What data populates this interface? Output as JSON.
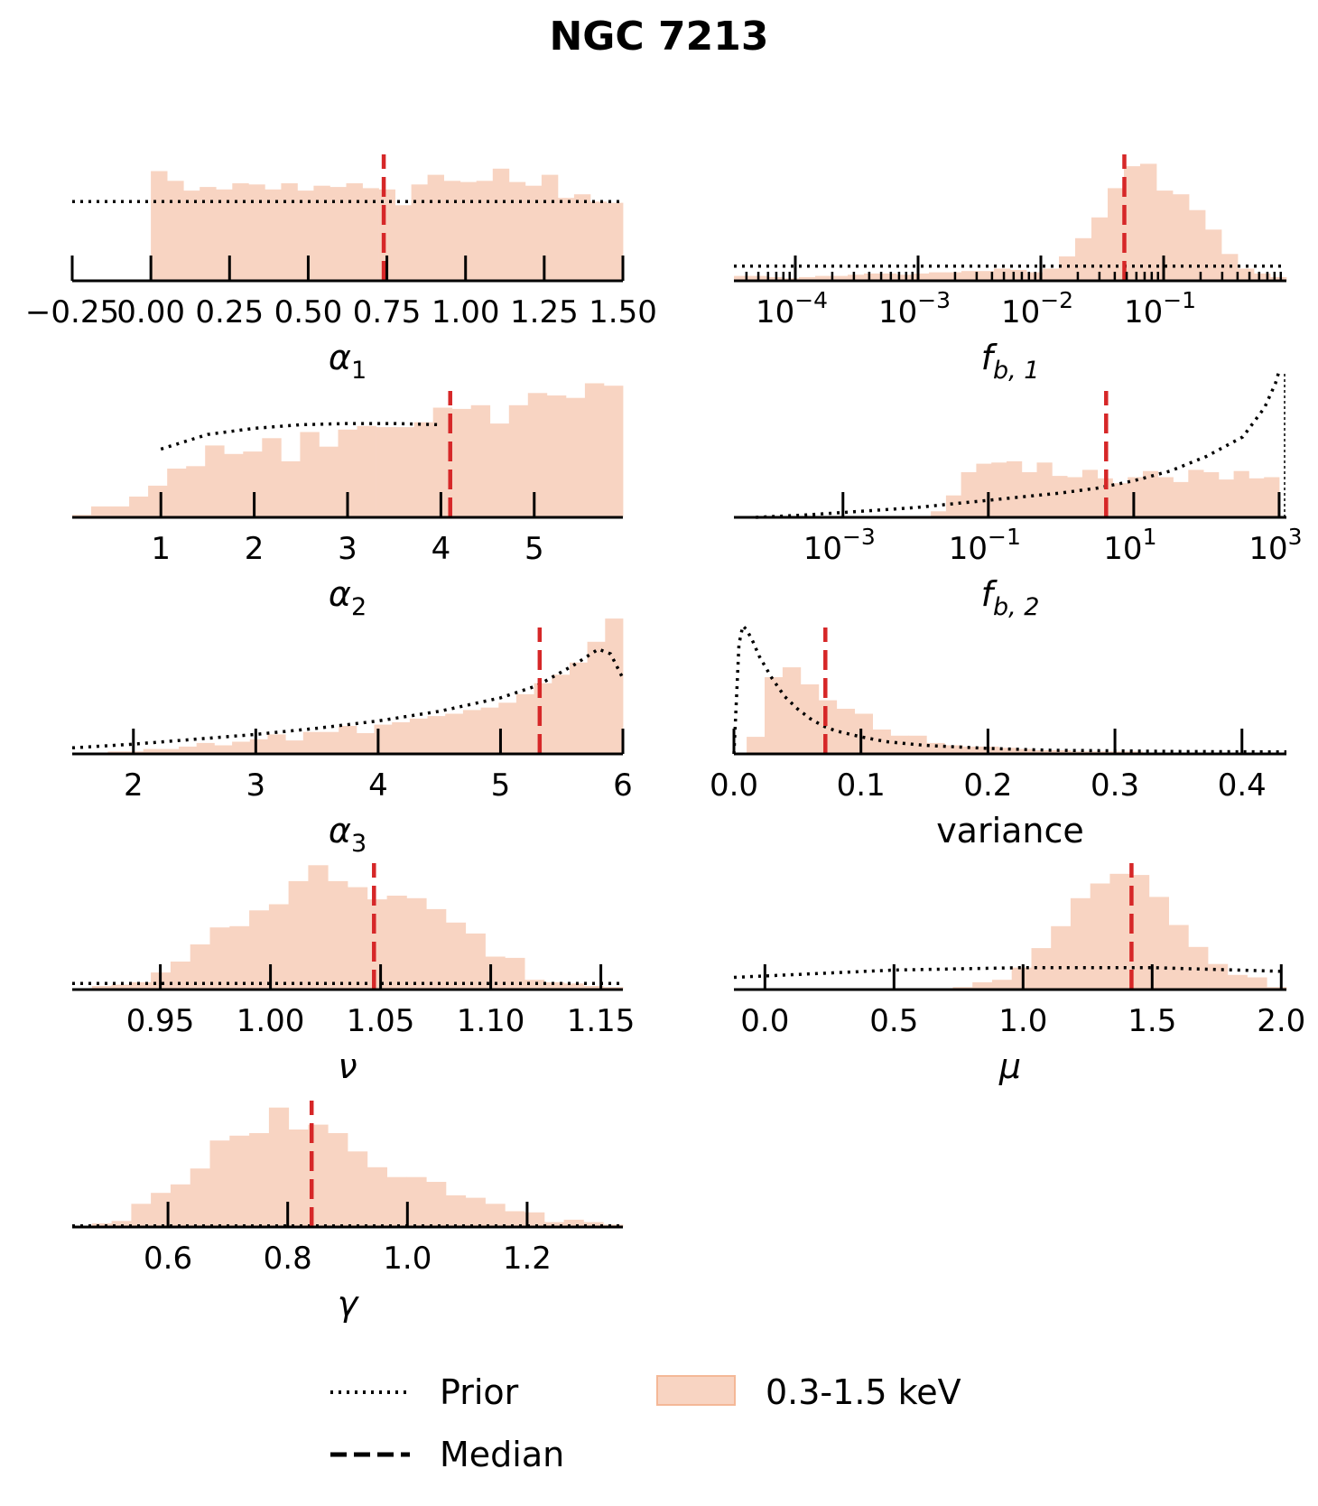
{
  "title": "NGC 7213",
  "colors": {
    "hist_fill": "#f8d4c2",
    "hist_edge": "#f4b897",
    "median": "#d62728",
    "prior": "#000000"
  },
  "legend": {
    "prior": "Prior",
    "median": "Median",
    "hist": "0.3-1.5 keV"
  },
  "chart_data": [
    {
      "id": "alpha1",
      "type": "bar",
      "xlabel": "α₁",
      "xlabel_main": "α",
      "xlabel_sub": "1",
      "xscale": "linear",
      "xlim": [
        -0.25,
        1.5
      ],
      "ylim": [
        0,
        1
      ],
      "xticks": [
        -0.25,
        0.0,
        0.25,
        0.5,
        0.75,
        1.0,
        1.25,
        1.5
      ],
      "xticklabels": [
        "−0.25",
        "0.00",
        "0.25",
        "0.50",
        "0.75",
        "1.00",
        "1.25",
        "1.50"
      ],
      "bin_start": 0.0,
      "bin_end": 1.5,
      "values": [
        0.9,
        0.82,
        0.74,
        0.77,
        0.75,
        0.8,
        0.79,
        0.75,
        0.8,
        0.74,
        0.78,
        0.77,
        0.8,
        0.76,
        0.75,
        0.62,
        0.79,
        0.87,
        0.82,
        0.81,
        0.82,
        0.92,
        0.81,
        0.78,
        0.87,
        0.68,
        0.71,
        0.65,
        0.64
      ],
      "median": 0.74,
      "prior": {
        "kind": "flat",
        "x": [
          -0.25,
          1.5
        ],
        "y": [
          0.65,
          0.65
        ]
      }
    },
    {
      "id": "fb1",
      "type": "bar",
      "xlabel": "f_b,1",
      "xlabel_main": "f",
      "xlabel_sub": "b, 1",
      "xscale": "log",
      "xlim": [
        -4.5,
        0.0
      ],
      "ylim": [
        0,
        1
      ],
      "xticks": [
        -4,
        -3,
        -2,
        -1
      ],
      "xticklabels": [
        "10^-4",
        "10^-3",
        "10^-2",
        "10^-1"
      ],
      "bin_start": -4.5,
      "bin_end": 0.0,
      "values": [
        0.04,
        0.04,
        0.03,
        0.02,
        0.03,
        0.04,
        0.04,
        0.05,
        0.06,
        0.06,
        0.05,
        0.06,
        0.07,
        0.07,
        0.08,
        0.08,
        0.1,
        0.09,
        0.07,
        0.1,
        0.2,
        0.35,
        0.52,
        0.76,
        0.94,
        0.96,
        0.74,
        0.71,
        0.58,
        0.42,
        0.22,
        0.1,
        0.06,
        0.03
      ],
      "median": -1.32,
      "prior": {
        "kind": "flat",
        "x": [
          -4.5,
          0.0
        ],
        "y": [
          0.12,
          0.12
        ]
      }
    },
    {
      "id": "alpha2",
      "type": "bar",
      "xlabel": "α₂",
      "xlabel_main": "α",
      "xlabel_sub": "2",
      "xscale": "linear",
      "xlim": [
        0.05,
        5.95
      ],
      "ylim": [
        0,
        1
      ],
      "xticks": [
        1,
        2,
        3,
        4,
        5
      ],
      "xticklabels": [
        "1",
        "2",
        "3",
        "4",
        "5"
      ],
      "bin_start": 0.05,
      "bin_end": 5.95,
      "values": [
        0.02,
        0.09,
        0.09,
        0.17,
        0.26,
        0.4,
        0.42,
        0.59,
        0.52,
        0.54,
        0.65,
        0.46,
        0.7,
        0.58,
        0.72,
        0.75,
        0.74,
        0.74,
        0.78,
        0.9,
        0.89,
        0.92,
        0.77,
        0.92,
        1.02,
        1.0,
        0.98,
        1.1,
        1.08
      ],
      "median": 4.1,
      "prior": {
        "kind": "curve",
        "x": [
          1.0,
          1.5,
          2.0,
          2.5,
          3.0,
          3.5,
          4.0
        ],
        "y": [
          0.56,
          0.68,
          0.73,
          0.76,
          0.77,
          0.77,
          0.76
        ]
      }
    },
    {
      "id": "variance",
      "type": "bar",
      "xlabel": "variance",
      "xscale": "linear",
      "xlim": [
        0.0,
        0.435
      ],
      "ylim": [
        0,
        1
      ],
      "xticks": [
        0.0,
        0.1,
        0.2,
        0.3,
        0.4
      ],
      "xticklabels": [
        "0.0",
        "0.1",
        "0.2",
        "0.3",
        "0.4"
      ],
      "bin_start": 0.01,
      "bin_end": 0.435,
      "values": [
        0.14,
        0.63,
        0.71,
        0.57,
        0.44,
        0.37,
        0.33,
        0.2,
        0.15,
        0.15,
        0.09,
        0.07,
        0.06,
        0.06,
        0.05,
        0.04,
        0.03,
        0.03,
        0.02,
        0.02,
        0.02,
        0.02,
        0.01,
        0.01,
        0.01,
        0.01,
        0.01,
        0.01,
        0.01,
        0.01
      ],
      "median": 0.072,
      "prior": {
        "kind": "curve",
        "x": [
          0.0,
          0.002,
          0.004,
          0.007,
          0.01,
          0.015,
          0.02,
          0.03,
          0.04,
          0.05,
          0.06,
          0.07,
          0.08,
          0.1,
          0.12,
          0.15,
          0.2,
          0.25,
          0.3,
          0.35,
          0.4,
          0.435
        ],
        "y": [
          0.0,
          0.45,
          0.9,
          1.05,
          1.02,
          0.92,
          0.8,
          0.62,
          0.47,
          0.37,
          0.29,
          0.23,
          0.19,
          0.14,
          0.1,
          0.07,
          0.045,
          0.03,
          0.025,
          0.02,
          0.018,
          0.016
        ]
      }
    },
    {
      "id": "alpha3",
      "type": "bar",
      "xlabel": "α₃",
      "xlabel_main": "α",
      "xlabel_sub": "3",
      "xscale": "linear",
      "xlim": [
        1.5,
        6.0
      ],
      "ylim": [
        0,
        1
      ],
      "xticks": [
        2,
        3,
        4,
        5,
        6
      ],
      "xticklabels": [
        "2",
        "3",
        "4",
        "5",
        "6"
      ],
      "bin_start": 1.5,
      "bin_end": 6.0,
      "values": [
        0.0,
        0.01,
        0.02,
        0.02,
        0.04,
        0.04,
        0.06,
        0.09,
        0.07,
        0.1,
        0.12,
        0.16,
        0.11,
        0.18,
        0.18,
        0.23,
        0.17,
        0.24,
        0.26,
        0.29,
        0.31,
        0.33,
        0.36,
        0.38,
        0.42,
        0.49,
        0.58,
        0.65,
        0.75,
        0.92,
        1.11
      ],
      "median": 5.32,
      "prior": {
        "kind": "curve",
        "x": [
          1.5,
          2.0,
          2.5,
          3.0,
          3.5,
          4.0,
          4.5,
          5.0,
          5.3,
          5.6,
          5.8,
          5.9,
          6.0
        ],
        "y": [
          0.05,
          0.08,
          0.12,
          0.16,
          0.21,
          0.27,
          0.35,
          0.46,
          0.56,
          0.73,
          0.86,
          0.82,
          0.62
        ]
      }
    },
    {
      "id": "fb2",
      "type": "bar",
      "xlabel": "f_b,2",
      "xlabel_main": "f",
      "xlabel_sub": "b, 2",
      "xscale": "log",
      "xlim": [
        -4.5,
        3.1
      ],
      "ylim": [
        0,
        1
      ],
      "xticks": [
        -3,
        -1,
        1,
        3
      ],
      "xticklabels": [
        "10^-3",
        "10^-1",
        "10^1",
        "10^3"
      ],
      "bin_start": -4.5,
      "bin_end": 3.0,
      "values": [
        0.0,
        0.0,
        0.0,
        0.0,
        0.0,
        0.0,
        0.0,
        0.0,
        0.0,
        0.0,
        0.0,
        0.0,
        0.01,
        0.05,
        0.18,
        0.37,
        0.44,
        0.45,
        0.46,
        0.37,
        0.45,
        0.34,
        0.33,
        0.39,
        0.32,
        0.28,
        0.33,
        0.38,
        0.33,
        0.29,
        0.39,
        0.37,
        0.31,
        0.38,
        0.32,
        0.33
      ],
      "median": 0.62,
      "prior": {
        "kind": "curve",
        "x": [
          -4.2,
          -3.5,
          -3.0,
          -2.5,
          -2.0,
          -1.5,
          -1.0,
          -0.5,
          0.0,
          0.5,
          1.0,
          1.5,
          2.0,
          2.5,
          2.8,
          2.95,
          3.0
        ],
        "y": [
          0.0,
          0.02,
          0.04,
          0.06,
          0.08,
          0.11,
          0.14,
          0.17,
          0.2,
          0.24,
          0.3,
          0.38,
          0.5,
          0.66,
          0.9,
          1.1,
          1.2
        ]
      }
    },
    {
      "id": "nu",
      "type": "bar",
      "xlabel": "ν",
      "xscale": "linear",
      "xlim": [
        0.91,
        1.16
      ],
      "ylim": [
        0,
        1
      ],
      "xticks": [
        0.95,
        1.0,
        1.05,
        1.1,
        1.15
      ],
      "xticklabels": [
        "0.95",
        "1.00",
        "1.05",
        "1.10",
        "1.15"
      ],
      "bin_start": 0.91,
      "bin_end": 1.16,
      "values": [
        0.01,
        0.03,
        0.04,
        0.06,
        0.14,
        0.23,
        0.37,
        0.51,
        0.52,
        0.65,
        0.7,
        0.89,
        1.02,
        0.89,
        0.84,
        0.74,
        0.77,
        0.75,
        0.66,
        0.55,
        0.46,
        0.27,
        0.26,
        0.08,
        0.06,
        0.05,
        0.03,
        0.02
      ],
      "median": 1.047,
      "prior": {
        "kind": "flat",
        "x": [
          0.91,
          1.16
        ],
        "y": [
          0.05,
          0.05
        ]
      }
    },
    {
      "id": "mu",
      "type": "bar",
      "xlabel": "μ",
      "xscale": "linear",
      "xlim": [
        -0.12,
        2.02
      ],
      "ylim": [
        0,
        1
      ],
      "xticks": [
        0.0,
        0.5,
        1.0,
        1.5,
        2.0
      ],
      "xticklabels": [
        "0.0",
        "0.5",
        "1.0",
        "1.5",
        "2.0"
      ],
      "bin_start": 0.5,
      "bin_end": 2.02,
      "values": [
        0.01,
        0.01,
        0.01,
        0.02,
        0.06,
        0.08,
        0.18,
        0.34,
        0.52,
        0.75,
        0.87,
        0.95,
        0.94,
        0.76,
        0.53,
        0.35,
        0.21,
        0.12,
        0.1,
        0.02
      ],
      "median": 1.42,
      "prior": {
        "kind": "curve",
        "x": [
          -0.12,
          0.5,
          1.0,
          1.5,
          2.0
        ],
        "y": [
          0.1,
          0.16,
          0.18,
          0.18,
          0.15
        ]
      }
    },
    {
      "id": "gamma",
      "type": "bar",
      "xlabel": "γ",
      "xscale": "linear",
      "xlim": [
        0.44,
        1.36
      ],
      "ylim": [
        0,
        1
      ],
      "xticks": [
        0.6,
        0.8,
        1.0,
        1.2
      ],
      "xticklabels": [
        "0.6",
        "0.8",
        "1.0",
        "1.2"
      ],
      "bin_start": 0.44,
      "bin_end": 1.36,
      "values": [
        0.01,
        0.03,
        0.05,
        0.19,
        0.28,
        0.35,
        0.48,
        0.71,
        0.75,
        0.77,
        0.98,
        0.8,
        0.84,
        0.77,
        0.62,
        0.49,
        0.41,
        0.41,
        0.37,
        0.26,
        0.24,
        0.19,
        0.13,
        0.12,
        0.04,
        0.06,
        0.04,
        0.02
      ],
      "median": 0.84,
      "prior": {
        "kind": "flat",
        "x": [
          0.44,
          1.36
        ],
        "y": [
          0.01,
          0.01
        ]
      }
    }
  ]
}
